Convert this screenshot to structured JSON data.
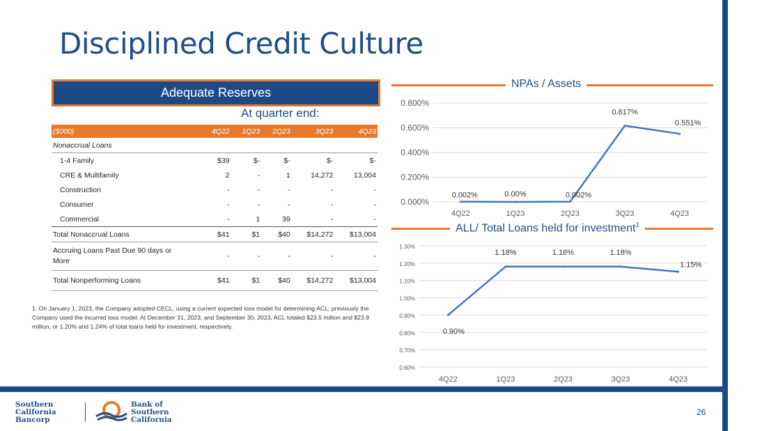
{
  "title": "Disciplined Credit Culture",
  "banner": "Adequate Reserves",
  "subhead": "At quarter end:",
  "table": {
    "header": [
      "($000)",
      "4Q22",
      "1Q23",
      "2Q23",
      "3Q23",
      "4Q23"
    ],
    "section": "Nonaccrual Loans",
    "rows": [
      {
        "label": "1-4 Family",
        "v": [
          "$39",
          "$-",
          "$-",
          "$-",
          "$-"
        ]
      },
      {
        "label": "CRE & Multifamily",
        "v": [
          "2",
          "-",
          "1",
          "14,272",
          "13,004"
        ]
      },
      {
        "label": "Construction",
        "v": [
          "-",
          "-",
          "-",
          "-",
          "-"
        ]
      },
      {
        "label": "Consumer",
        "v": [
          "-",
          "-",
          "-",
          "-",
          "-"
        ]
      },
      {
        "label": "Commercial",
        "v": [
          "-",
          "1",
          "39",
          "-",
          "-"
        ]
      }
    ],
    "total_nonaccrual": {
      "label": "Total Nonaccrual Loans",
      "v": [
        "$41",
        "$1",
        "$40",
        "$14,272",
        "$13,004"
      ]
    },
    "accruing": {
      "label": "Accruing Loans Past Due 90 days or More",
      "v": [
        "-",
        "-",
        "-",
        "-",
        "-"
      ]
    },
    "total_np": {
      "label": "Total Nonperforming Loans",
      "v": [
        "$41",
        "$1",
        "$40",
        "$14,272",
        "$13,004"
      ]
    }
  },
  "footnote": "1. On January 1, 2023, the Company adopted CECL, using a current expected loss model for determining ACL; previously the Company used the incurred loss model. At December 31, 2023, and September 30, 2023, ACL totaled $23.5 million and $23.9 million, or 1.20% and 1.24% of total loans held for investment, respectively.",
  "chart_data": [
    {
      "type": "line",
      "title": "NPAs / Assets",
      "categories": [
        "4Q22",
        "1Q23",
        "2Q23",
        "3Q23",
        "4Q23"
      ],
      "values": [
        0.002,
        0.0,
        0.002,
        0.617,
        0.551
      ],
      "data_labels": [
        "0.002%",
        "0.00%",
        "0.002%",
        "0.617%",
        "0.551%"
      ],
      "ylim": [
        0,
        0.8
      ],
      "yticks": [
        "0.000%",
        "0.200%",
        "0.400%",
        "0.600%",
        "0.800%"
      ],
      "ytick_values": [
        0,
        0.2,
        0.4,
        0.6,
        0.8
      ],
      "grid": true,
      "color": "#4472c4"
    },
    {
      "type": "line",
      "title": "ALL/ Total Loans held for investment",
      "title_sup": "1",
      "categories": [
        "4Q22",
        "1Q23",
        "2Q23",
        "3Q23",
        "4Q23"
      ],
      "values": [
        0.9,
        1.18,
        1.18,
        1.18,
        1.15
      ],
      "data_labels": [
        "0.90%",
        "1.18%",
        "1.18%",
        "1.18%",
        "1.15%"
      ],
      "ylim": [
        0.6,
        1.3
      ],
      "yticks": [
        "0.60%",
        "0.70%",
        "0.80%",
        "0.90%",
        "1.00%",
        "1.10%",
        "1.20%",
        "1.30%"
      ],
      "ytick_values": [
        0.6,
        0.7,
        0.8,
        0.9,
        1.0,
        1.1,
        1.2,
        1.3
      ],
      "grid": true,
      "color": "#4472c4"
    }
  ],
  "logos": {
    "left": [
      "Southern",
      "California",
      "Bancorp"
    ],
    "right": [
      "Bank of",
      "Southern",
      "California"
    ]
  },
  "page_number": "26",
  "colors": {
    "navy": "#1b4a86",
    "orange": "#e8792b",
    "line": "#4472c4"
  }
}
